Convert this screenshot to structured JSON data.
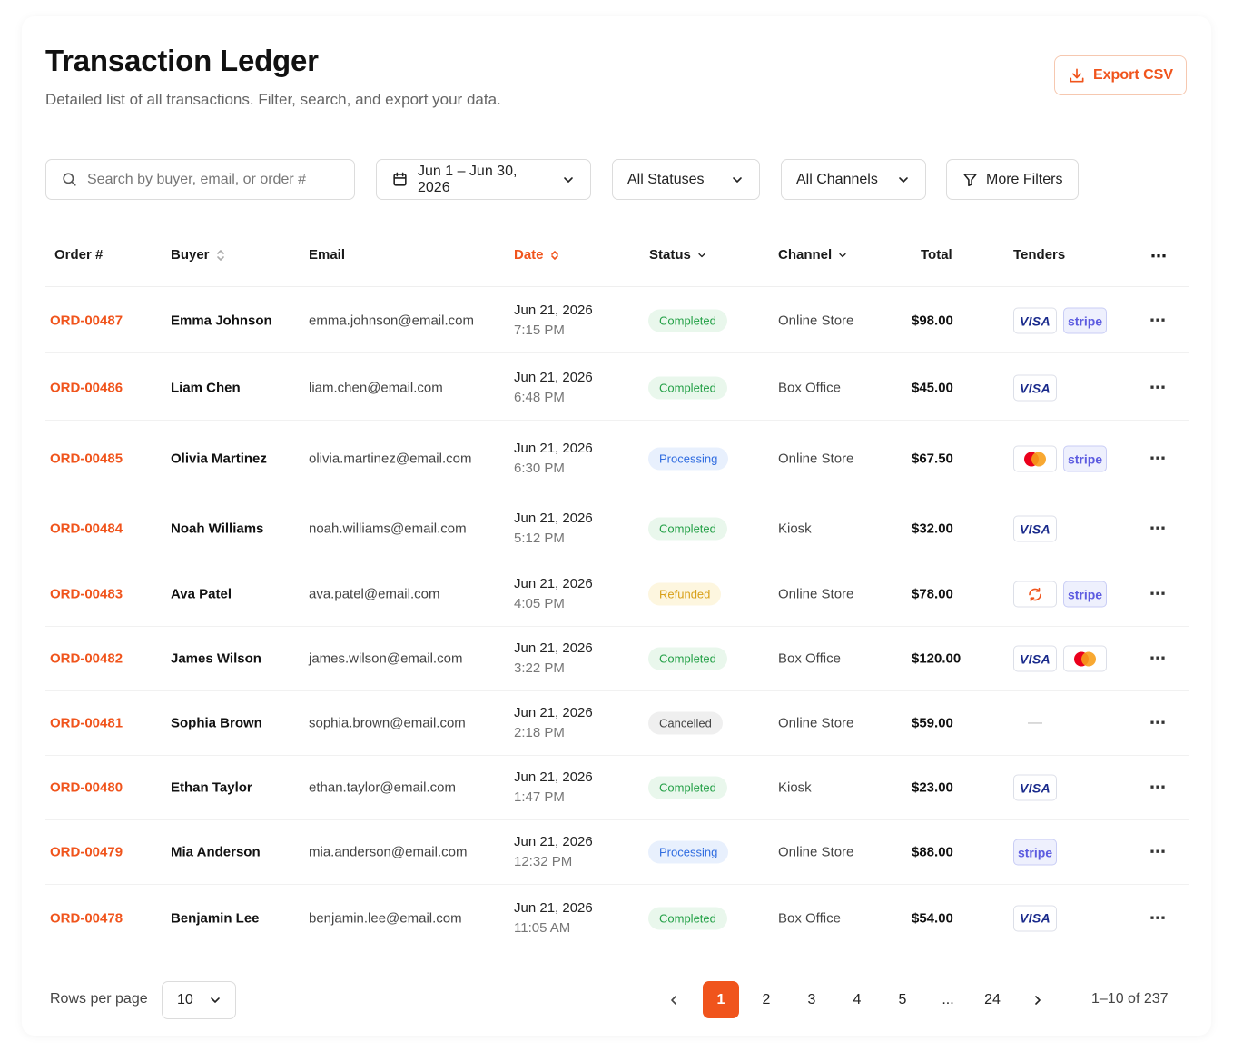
{
  "header": {
    "title": "Transaction Ledger",
    "subtitle": "Detailed list of all transactions. Filter, search, and export your data.",
    "export_label": "Export CSV"
  },
  "filters": {
    "search_placeholder": "Search by buyer, email, or order #",
    "date_range": "Jun 1 – Jun 30, 2026",
    "status": "All Statuses",
    "channel": "All Channels",
    "more": "More Filters"
  },
  "columns": {
    "order": "Order #",
    "buyer": "Buyer",
    "email": "Email",
    "date": "Date",
    "status": "Status",
    "channel": "Channel",
    "total": "Total",
    "tenders": "Tenders"
  },
  "colors": {
    "accent": "#f0541c",
    "completed": "#23a046",
    "processing": "#2f6ce0",
    "refunded": "#d8a019",
    "cancelled": "#444444"
  },
  "rows": [
    {
      "order": "ORD-00487",
      "buyer": "Emma Johnson",
      "email": "emma.johnson@email.com",
      "date": "Jun 21, 2026",
      "time": "7:15 PM",
      "status": "Completed",
      "status_kind": "completed",
      "channel": "Online Store",
      "total": "$98.00",
      "tenders": [
        "visa",
        "stripe"
      ]
    },
    {
      "order": "ORD-00486",
      "buyer": "Liam Chen",
      "email": "liam.chen@email.com",
      "date": "Jun 21, 2026",
      "time": "6:48 PM",
      "status": "Completed",
      "status_kind": "completed",
      "channel": "Box Office",
      "total": "$45.00",
      "tenders": [
        "visa"
      ]
    },
    {
      "order": "ORD-00485",
      "buyer": "Olivia Martinez",
      "email": "olivia.martinez@email.com",
      "date": "Jun 21, 2026",
      "time": "6:30 PM",
      "status": "Processing",
      "status_kind": "processing",
      "channel": "Online Store",
      "total": "$67.50",
      "tenders": [
        "mastercard",
        "stripe"
      ]
    },
    {
      "order": "ORD-00484",
      "buyer": "Noah Williams",
      "email": "noah.williams@email.com",
      "date": "Jun 21, 2026",
      "time": "5:12 PM",
      "status": "Completed",
      "status_kind": "completed",
      "channel": "Kiosk",
      "total": "$32.00",
      "tenders": [
        "visa"
      ]
    },
    {
      "order": "ORD-00483",
      "buyer": "Ava Patel",
      "email": "ava.patel@email.com",
      "date": "Jun 21, 2026",
      "time": "4:05 PM",
      "status": "Refunded",
      "status_kind": "refunded",
      "channel": "Online Store",
      "total": "$78.00",
      "tenders": [
        "refund",
        "stripe"
      ]
    },
    {
      "order": "ORD-00482",
      "buyer": "James Wilson",
      "email": "james.wilson@email.com",
      "date": "Jun 21, 2026",
      "time": "3:22 PM",
      "status": "Completed",
      "status_kind": "completed",
      "channel": "Box Office",
      "total": "$120.00",
      "tenders": [
        "visa",
        "mastercard"
      ]
    },
    {
      "order": "ORD-00481",
      "buyer": "Sophia Brown",
      "email": "sophia.brown@email.com",
      "date": "Jun 21, 2026",
      "time": "2:18 PM",
      "status": "Cancelled",
      "status_kind": "cancelled",
      "channel": "Online Store",
      "total": "$59.00",
      "tenders": []
    },
    {
      "order": "ORD-00480",
      "buyer": "Ethan Taylor",
      "email": "ethan.taylor@email.com",
      "date": "Jun 21, 2026",
      "time": "1:47 PM",
      "status": "Completed",
      "status_kind": "completed",
      "channel": "Kiosk",
      "total": "$23.00",
      "tenders": [
        "visa"
      ]
    },
    {
      "order": "ORD-00479",
      "buyer": "Mia Anderson",
      "email": "mia.anderson@email.com",
      "date": "Jun 21, 2026",
      "time": "12:32 PM",
      "status": "Processing",
      "status_kind": "processing",
      "channel": "Online Store",
      "total": "$88.00",
      "tenders": [
        "stripe"
      ]
    },
    {
      "order": "ORD-00478",
      "buyer": "Benjamin Lee",
      "email": "benjamin.lee@email.com",
      "date": "Jun 21, 2026",
      "time": "11:05 AM",
      "status": "Completed",
      "status_kind": "completed",
      "channel": "Box Office",
      "total": "$54.00",
      "tenders": [
        "visa"
      ]
    }
  ],
  "tender_labels": {
    "visa": "VISA",
    "stripe": "stripe",
    "none": "—"
  },
  "footer": {
    "rows_per_page_label": "Rows per page",
    "rows_per_page": "10",
    "pages": [
      "1",
      "2",
      "3",
      "4",
      "5",
      "...",
      "24"
    ],
    "current_page": "1",
    "range": "1–10 of 237"
  }
}
